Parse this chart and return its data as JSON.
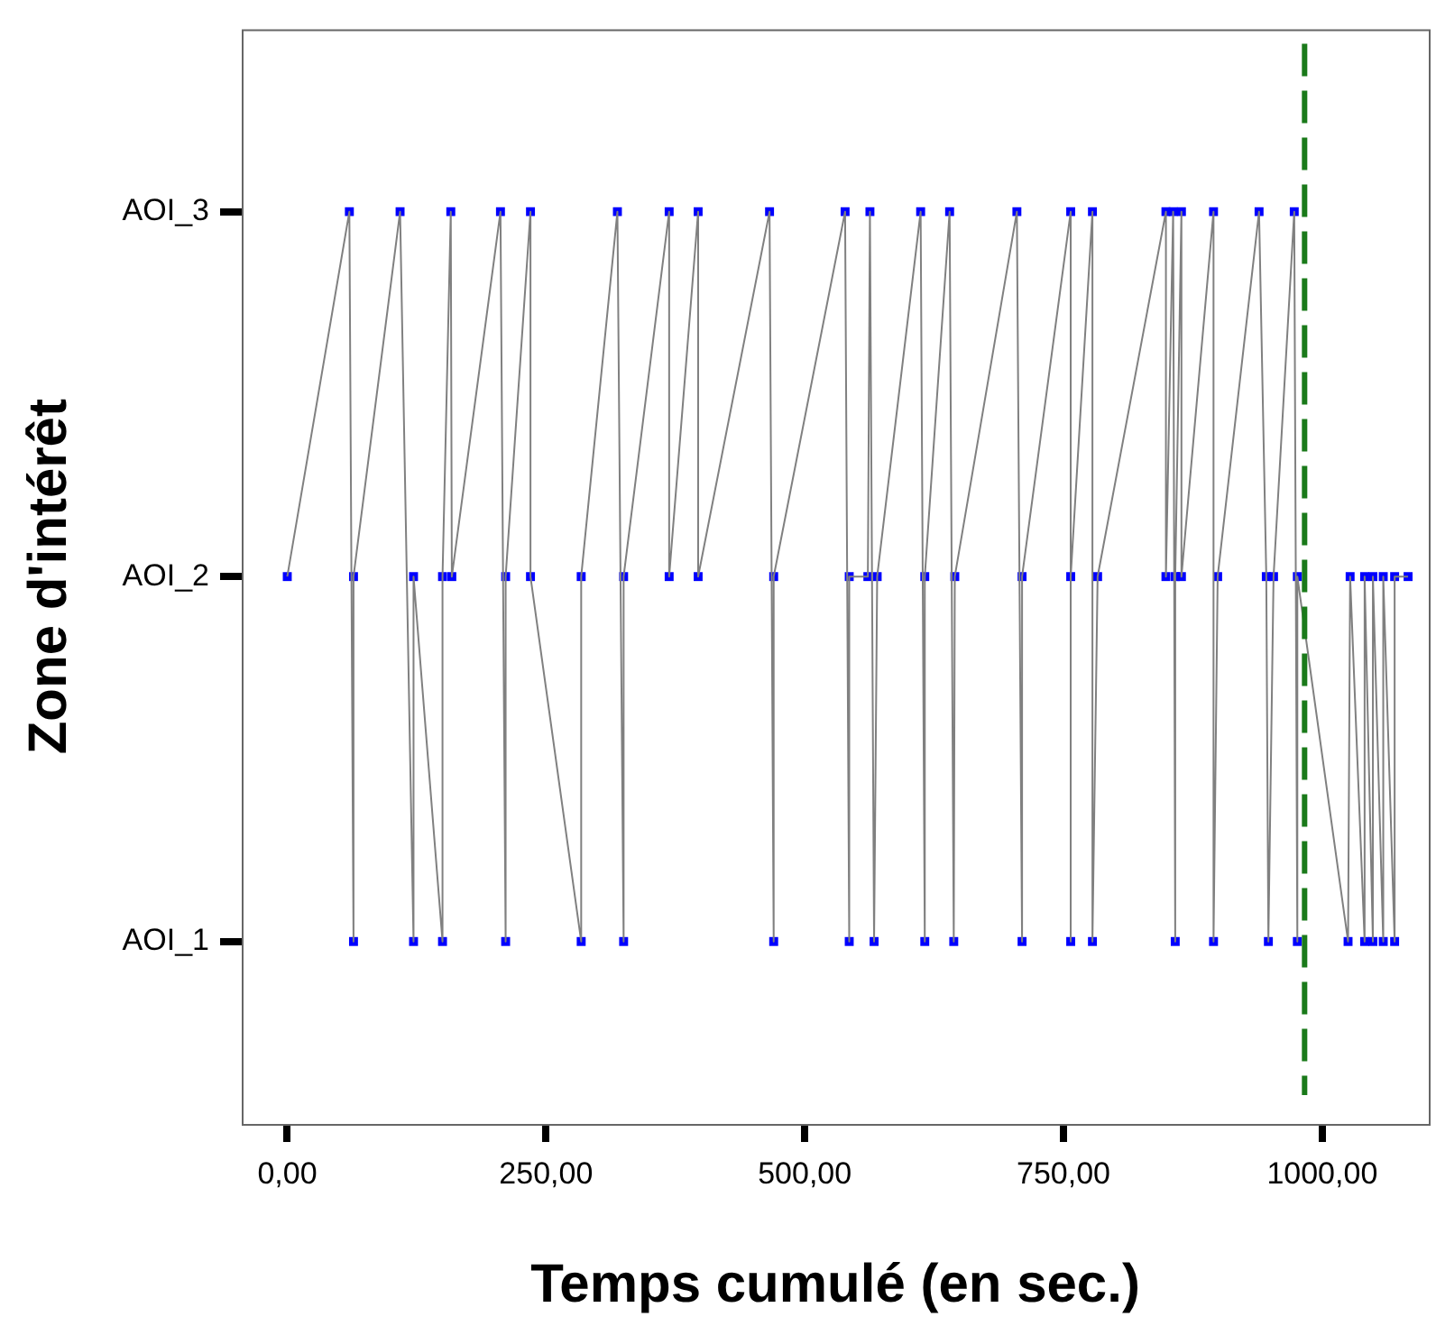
{
  "chart_data": {
    "type": "line",
    "xlabel": "Temps cumulé (en sec.)",
    "ylabel": "Zone d'intérêt",
    "x": [
      0,
      60,
      64,
      64,
      109,
      122,
      122,
      150,
      150,
      158,
      159,
      206,
      211,
      211,
      235,
      235,
      284,
      284,
      319,
      325,
      325,
      369,
      369,
      397,
      397,
      466,
      470,
      470,
      539,
      543,
      543,
      561,
      563,
      567,
      570,
      612,
      616,
      616,
      640,
      644,
      645,
      705,
      710,
      710,
      757,
      757,
      757,
      778,
      778,
      783,
      849,
      849,
      856,
      858,
      858,
      864,
      864,
      895,
      895,
      899,
      939,
      946,
      948,
      953,
      973,
      976,
      976,
      1025,
      1027,
      1041,
      1041,
      1049,
      1049,
      1059,
      1059,
      1070,
      1070,
      1083
    ],
    "series": [
      {
        "color": "#808080",
        "marker": "none",
        "values": [
          2,
          3,
          1,
          2,
          3,
          1,
          2,
          1,
          2,
          3,
          2,
          3,
          1,
          2,
          3,
          2,
          1,
          2,
          3,
          1,
          2,
          3,
          2,
          3,
          2,
          3,
          1,
          2,
          3,
          1,
          2,
          2,
          3,
          1,
          2,
          3,
          1,
          2,
          3,
          1,
          2,
          3,
          1,
          2,
          3,
          1,
          2,
          3,
          1,
          2,
          3,
          2,
          3,
          1,
          2,
          3,
          2,
          3,
          1,
          2,
          3,
          2,
          1,
          2,
          3,
          1,
          2,
          1,
          2,
          1,
          2,
          1,
          2,
          1,
          2,
          1,
          2,
          2
        ]
      },
      {
        "type": "scatter",
        "color": "#0000ff",
        "marker": "square",
        "values": [
          2,
          3,
          1,
          2,
          3,
          1,
          2,
          1,
          2,
          3,
          2,
          3,
          1,
          2,
          3,
          2,
          1,
          2,
          3,
          1,
          2,
          3,
          2,
          3,
          2,
          3,
          1,
          2,
          3,
          1,
          2,
          2,
          3,
          1,
          2,
          3,
          1,
          2,
          3,
          1,
          2,
          3,
          1,
          2,
          3,
          1,
          2,
          3,
          1,
          2,
          3,
          2,
          3,
          1,
          2,
          3,
          2,
          3,
          1,
          2,
          3,
          2,
          1,
          2,
          3,
          1,
          2,
          1,
          2,
          1,
          2,
          1,
          2,
          1,
          2,
          1,
          2,
          2
        ]
      }
    ],
    "xlim": [
      -44,
      1103
    ],
    "xticks": [
      {
        "value": 0,
        "label": "0,00"
      },
      {
        "value": 250,
        "label": "250,00"
      },
      {
        "value": 500,
        "label": "500,00"
      },
      {
        "value": 750,
        "label": "750,00"
      },
      {
        "value": 1000,
        "label": "1000,00"
      }
    ],
    "ylim": [
      0.5,
      3.5
    ],
    "yticks": [
      {
        "value": 1,
        "label": "AOI_1"
      },
      {
        "value": 2,
        "label": "AOI_2"
      },
      {
        "value": 3,
        "label": "AOI_3"
      }
    ],
    "ref_lines": [
      {
        "axis": "x",
        "value": 983,
        "color": "#1a7a1a",
        "line_style": "dashed"
      }
    ],
    "grid": false,
    "legend": false
  }
}
